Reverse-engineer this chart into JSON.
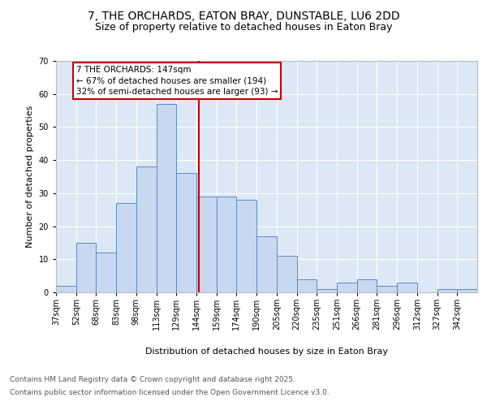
{
  "title": "7, THE ORCHARDS, EATON BRAY, DUNSTABLE, LU6 2DD",
  "subtitle": "Size of property relative to detached houses in Eaton Bray",
  "xlabel": "Distribution of detached houses by size in Eaton Bray",
  "ylabel": "Number of detached properties",
  "bin_labels": [
    "37sqm",
    "52sqm",
    "68sqm",
    "83sqm",
    "98sqm",
    "113sqm",
    "129sqm",
    "144sqm",
    "159sqm",
    "174sqm",
    "190sqm",
    "205sqm",
    "220sqm",
    "235sqm",
    "251sqm",
    "266sqm",
    "281sqm",
    "296sqm",
    "312sqm",
    "327sqm",
    "342sqm"
  ],
  "bar_values": [
    2,
    15,
    12,
    27,
    38,
    57,
    36,
    29,
    29,
    28,
    17,
    11,
    4,
    1,
    3,
    4,
    2,
    3,
    0,
    1,
    1
  ],
  "bar_color": "#c8d8f0",
  "bar_edge_color": "#5a8ac6",
  "vline_x": 144,
  "vline_color": "#cc0000",
  "annotation_title": "7 THE ORCHARDS: 147sqm",
  "annotation_line1": "← 67% of detached houses are smaller (194)",
  "annotation_line2": "32% of semi-detached houses are larger (93) →",
  "annotation_box_color": "#cc0000",
  "ylim": [
    0,
    70
  ],
  "yticks": [
    0,
    10,
    20,
    30,
    40,
    50,
    60,
    70
  ],
  "background_color": "#dce8f5",
  "footer_line1": "Contains HM Land Registry data © Crown copyright and database right 2025.",
  "footer_line2": "Contains public sector information licensed under the Open Government Licence v3.0.",
  "title_fontsize": 10,
  "subtitle_fontsize": 9,
  "axis_label_fontsize": 8,
  "tick_fontsize": 7,
  "footer_fontsize": 6.5,
  "annotation_fontsize": 7.5,
  "bin_width": 15
}
